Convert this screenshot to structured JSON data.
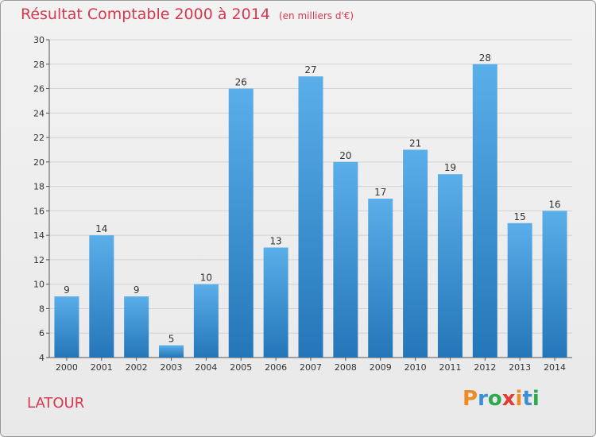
{
  "title": "Résultat Comptable 2000 à 2014",
  "subtitle": "(en milliers d'€)",
  "commune": "LATOUR",
  "logo": {
    "letters": [
      "P",
      "r",
      "o",
      "x",
      "i",
      "t",
      "i"
    ],
    "colors": [
      "#f08a24",
      "#3a8fd6",
      "#2fa84f",
      "#e53935",
      "#f08a24",
      "#3a8fd6",
      "#2fa84f"
    ]
  },
  "colors": {
    "bar_light": "#5aaee9",
    "bar_dark": "#2476b8",
    "accent": "#d6394f"
  },
  "chart_data": {
    "type": "bar",
    "categories": [
      "2000",
      "2001",
      "2002",
      "2003",
      "2004",
      "2005",
      "2006",
      "2007",
      "2008",
      "2009",
      "2010",
      "2011",
      "2012",
      "2013",
      "2014"
    ],
    "values": [
      9,
      14,
      9,
      5,
      10,
      26,
      13,
      27,
      20,
      17,
      21,
      19,
      28,
      15,
      16
    ],
    "ylim": [
      4,
      30
    ],
    "yticks": [
      4,
      6,
      8,
      10,
      12,
      14,
      16,
      18,
      20,
      22,
      24,
      26,
      28,
      30
    ],
    "grid": true,
    "title": "Résultat Comptable 2000 à 2014",
    "xlabel": "",
    "ylabel": ""
  }
}
